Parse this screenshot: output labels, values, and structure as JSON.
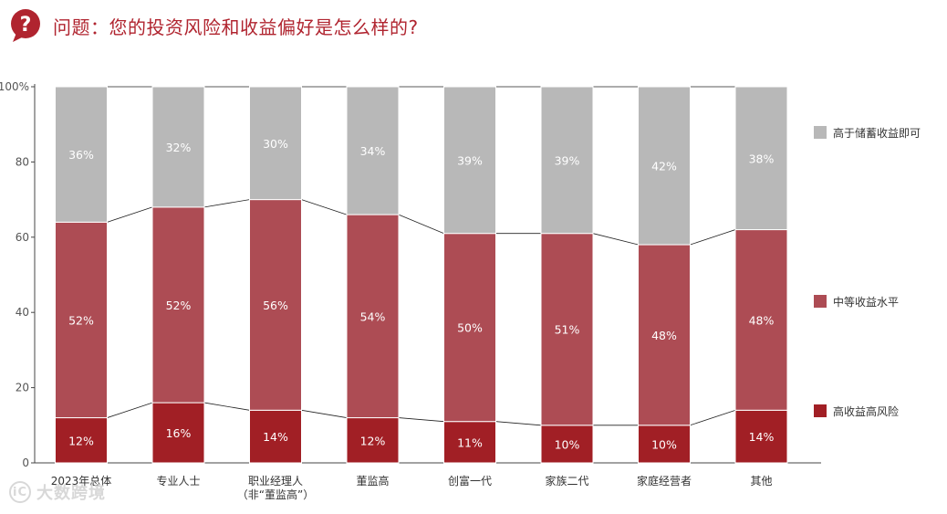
{
  "header": {
    "title": "问题：您的投资风险和收益偏好是怎么样的?",
    "icon": "question-bubble-icon",
    "accent": "#b0242f"
  },
  "watermark": {
    "text": "大数跨境",
    "mark": "iC"
  },
  "chart_data": {
    "type": "bar",
    "stacked": true,
    "percent": true,
    "categories": [
      [
        "2023年总体"
      ],
      [
        "专业人士"
      ],
      [
        "职业经理人",
        "（非“董监高”）"
      ],
      [
        "董监高"
      ],
      [
        "创富一代"
      ],
      [
        "家族二代"
      ],
      [
        "家庭经营者"
      ],
      [
        "其他"
      ]
    ],
    "series": [
      {
        "name": "高收益高风险",
        "color": "#a11f25",
        "values": [
          12,
          16,
          14,
          12,
          11,
          10,
          10,
          14
        ]
      },
      {
        "name": "中等收益水平",
        "color": "#ad4c54",
        "values": [
          52,
          52,
          56,
          54,
          50,
          51,
          48,
          48
        ]
      },
      {
        "name": "高于储蓄收益即可",
        "color": "#b8b8b8",
        "values": [
          36,
          32,
          30,
          34,
          39,
          39,
          42,
          38
        ]
      }
    ],
    "value_suffix": "%",
    "ylim": [
      0,
      100
    ],
    "yticks": [
      "0",
      "20",
      "40",
      "60",
      "80",
      "100%"
    ],
    "legend_position": "right"
  }
}
